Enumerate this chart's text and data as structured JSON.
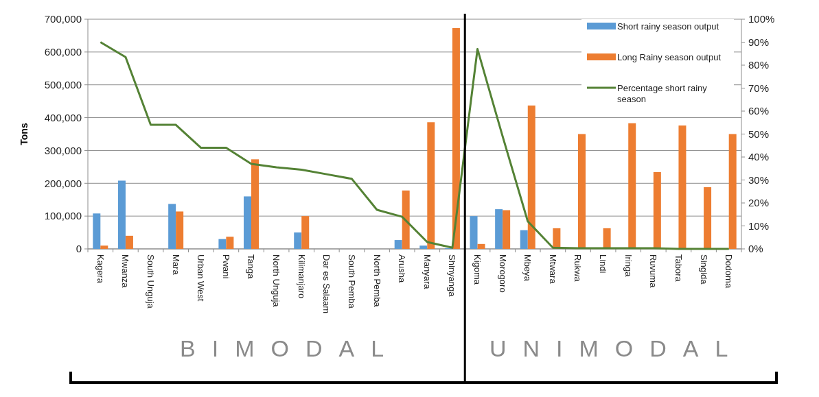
{
  "chart_data": {
    "type": "bar",
    "ylabel": "Tons",
    "categories": [
      "Kagera",
      "Mwanza",
      "South Unguja",
      "Mara",
      "Urban West",
      "Pwani",
      "Tanga",
      "North Unguja",
      "Kilimanjaro",
      "Dar es Salaam",
      "South Pemba",
      "North Pemba",
      "Arusha",
      "Manyara",
      "Shinyanga",
      "Kigoma",
      "Morogoro",
      "Mbeya",
      "Mtwara",
      "Rukwa",
      "Lindi",
      "Iringa",
      "Ruvuma",
      "Tabora",
      "Singida",
      "Dodoma"
    ],
    "series": [
      {
        "name": "Short rainy season output",
        "color": "#5b9bd5",
        "values": [
          108000,
          208000,
          0,
          137000,
          0,
          30000,
          160000,
          0,
          50000,
          0,
          0,
          0,
          27000,
          10000,
          2000,
          100000,
          121000,
          57000,
          0,
          0,
          0,
          0,
          0,
          0,
          0,
          0
        ]
      },
      {
        "name": "Long Rainy season output",
        "color": "#ed7d31",
        "values": [
          10000,
          40000,
          0,
          114000,
          0,
          37000,
          273000,
          0,
          100000,
          0,
          0,
          0,
          178000,
          386000,
          673000,
          15000,
          118000,
          437000,
          63000,
          350000,
          63000,
          383000,
          234000,
          376000,
          188000,
          350000
        ]
      },
      {
        "name": "Percentage short rainy season",
        "type": "line",
        "axis": "y2",
        "color": "#548235",
        "values": [
          90,
          83.5,
          54,
          54,
          44,
          44,
          37,
          35.5,
          34.5,
          32.5,
          30.5,
          17,
          14,
          3,
          0.5,
          87,
          49,
          12,
          0.5,
          0.3,
          0.3,
          0.3,
          0.3,
          0,
          0,
          0
        ]
      }
    ],
    "ylim": [
      0,
      700000
    ],
    "yticks": [
      0,
      {
        "value": 100000,
        "label": "100,000"
      },
      {
        "value": 200000,
        "label": "200,000"
      },
      {
        "value": 300000,
        "label": "300,000"
      },
      {
        "value": 400000,
        "label": "400,000"
      },
      {
        "value": 500000,
        "label": "500,000"
      },
      {
        "value": 600000,
        "label": "600,000"
      },
      {
        "value": 700000,
        "label": "700,000"
      }
    ],
    "y2lim": [
      0,
      100
    ],
    "y2ticks": [
      {
        "value": 0,
        "label": "0%"
      },
      {
        "value": 10,
        "label": "10%"
      },
      {
        "value": 20,
        "label": "20%"
      },
      {
        "value": 30,
        "label": "30%"
      },
      {
        "value": 40,
        "label": "40%"
      },
      {
        "value": 50,
        "label": "50%"
      },
      {
        "value": 60,
        "label": "60%"
      },
      {
        "value": 70,
        "label": "70%"
      },
      {
        "value": 80,
        "label": "80%"
      },
      {
        "value": 90,
        "label": "90%"
      },
      {
        "value": 100,
        "label": "100%"
      }
    ],
    "grid": "y",
    "legend": "top right",
    "marker": "none",
    "ref_lines": [
      {
        "axis": "x",
        "value": "Kigoma",
        "color": "#000000"
      }
    ],
    "annotations": [
      "BIMODAL",
      "UNIMODAL"
    ]
  }
}
